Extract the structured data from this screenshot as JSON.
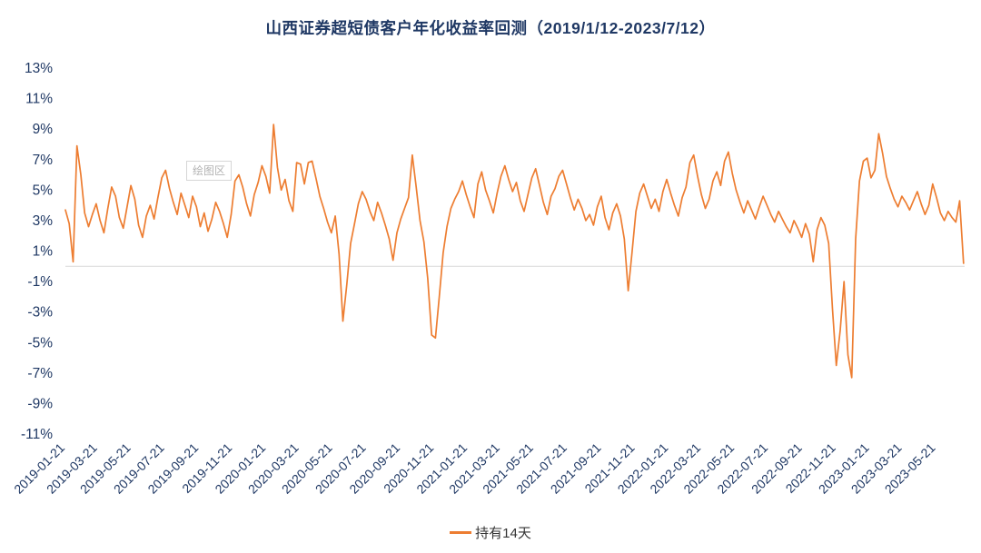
{
  "title": "山西证券超短债客户年化收益率回测（2019/1/12-2023/7/12）",
  "plot_area_label": "绘图区",
  "legend": {
    "label": "持有14天",
    "color": "#ED7D31"
  },
  "colors": {
    "line": "#ED7D31",
    "axis_text": "#1F3864",
    "title": "#1F3864",
    "zero_line": "#D9D9D9"
  },
  "chart_data": {
    "type": "line",
    "title": "山西证券超短债客户年化收益率回测（2019/1/12-2023/7/12）",
    "ylabel": "",
    "xlabel": "",
    "ylim": [
      -11,
      13
    ],
    "y_ticks": [
      13,
      11,
      9,
      7,
      5,
      3,
      1,
      -1,
      -3,
      -5,
      -7,
      -9,
      -11
    ],
    "y_tick_suffix": "%",
    "grid": false,
    "legend_position": "bottom",
    "x_range": [
      "2019-01-21",
      "2023-07-12"
    ],
    "x_tick_labels": [
      "2019-01-21",
      "2019-03-21",
      "2019-05-21",
      "2019-07-21",
      "2019-09-21",
      "2019-11-21",
      "2020-01-21",
      "2020-03-21",
      "2020-05-21",
      "2020-07-21",
      "2020-09-21",
      "2020-11-21",
      "2021-01-21",
      "2021-03-21",
      "2021-05-21",
      "2021-07-21",
      "2021-09-21",
      "2021-11-21",
      "2022-01-21",
      "2022-03-21",
      "2022-05-21",
      "2022-07-21",
      "2022-09-21",
      "2022-11-21",
      "2023-01-21",
      "2023-03-21",
      "2023-05-21"
    ],
    "series": [
      {
        "name": "持有14天",
        "color": "#ED7D31",
        "start_date": "2019-01-21",
        "interval_days": 7,
        "unit": "percent_annualized",
        "values": [
          3.7,
          2.8,
          0.3,
          7.9,
          6.0,
          3.5,
          2.6,
          3.4,
          4.1,
          3.0,
          2.2,
          3.8,
          5.2,
          4.6,
          3.2,
          2.5,
          3.9,
          5.3,
          4.4,
          2.7,
          1.9,
          3.3,
          4.0,
          3.1,
          4.5,
          5.8,
          6.3,
          5.1,
          4.2,
          3.4,
          4.8,
          4.0,
          3.2,
          4.6,
          3.9,
          2.6,
          3.5,
          2.3,
          3.1,
          4.2,
          3.6,
          2.8,
          1.9,
          3.4,
          5.6,
          6.0,
          5.2,
          4.1,
          3.3,
          4.7,
          5.5,
          6.6,
          5.9,
          4.8,
          9.3,
          6.5,
          5.0,
          5.7,
          4.3,
          3.6,
          6.8,
          6.7,
          5.4,
          6.8,
          6.9,
          5.8,
          4.6,
          3.8,
          2.9,
          2.2,
          3.3,
          0.8,
          -3.6,
          -1.2,
          1.5,
          2.8,
          4.1,
          4.9,
          4.4,
          3.6,
          3.0,
          4.2,
          3.5,
          2.7,
          1.8,
          0.4,
          2.2,
          3.1,
          3.8,
          4.5,
          7.3,
          5.2,
          3.0,
          1.6,
          -0.8,
          -4.5,
          -4.7,
          -2.0,
          0.9,
          2.6,
          3.8,
          4.4,
          4.9,
          5.6,
          4.7,
          3.9,
          3.2,
          5.4,
          6.2,
          5.0,
          4.3,
          3.5,
          4.8,
          5.9,
          6.6,
          5.7,
          4.9,
          5.5,
          4.3,
          3.6,
          4.7,
          5.8,
          6.4,
          5.3,
          4.2,
          3.4,
          4.6,
          5.1,
          5.9,
          6.3,
          5.4,
          4.5,
          3.7,
          4.4,
          3.8,
          3.0,
          3.4,
          2.7,
          3.9,
          4.6,
          3.2,
          2.4,
          3.5,
          4.1,
          3.3,
          1.8,
          -1.6,
          0.9,
          3.6,
          4.8,
          5.4,
          4.6,
          3.8,
          4.4,
          3.6,
          4.9,
          5.7,
          4.8,
          4.0,
          3.3,
          4.5,
          5.2,
          6.8,
          7.3,
          5.9,
          4.7,
          3.8,
          4.4,
          5.6,
          6.2,
          5.3,
          6.9,
          7.5,
          6.1,
          5.0,
          4.2,
          3.5,
          4.3,
          3.7,
          3.1,
          3.9,
          4.6,
          4.0,
          3.4,
          2.9,
          3.6,
          3.1,
          2.6,
          2.2,
          3.0,
          2.5,
          1.9,
          2.8,
          2.1,
          0.3,
          2.4,
          3.2,
          2.7,
          1.5,
          -2.8,
          -6.5,
          -4.2,
          -1.0,
          -5.8,
          -7.3,
          1.8,
          5.6,
          6.9,
          7.1,
          5.8,
          6.3,
          8.7,
          7.4,
          5.9,
          5.1,
          4.4,
          3.9,
          4.6,
          4.2,
          3.7,
          4.3,
          4.9,
          4.1,
          3.4,
          4.0,
          5.4,
          4.5,
          3.5,
          3.0,
          3.6,
          3.2,
          2.9,
          4.3,
          0.2
        ]
      }
    ]
  }
}
